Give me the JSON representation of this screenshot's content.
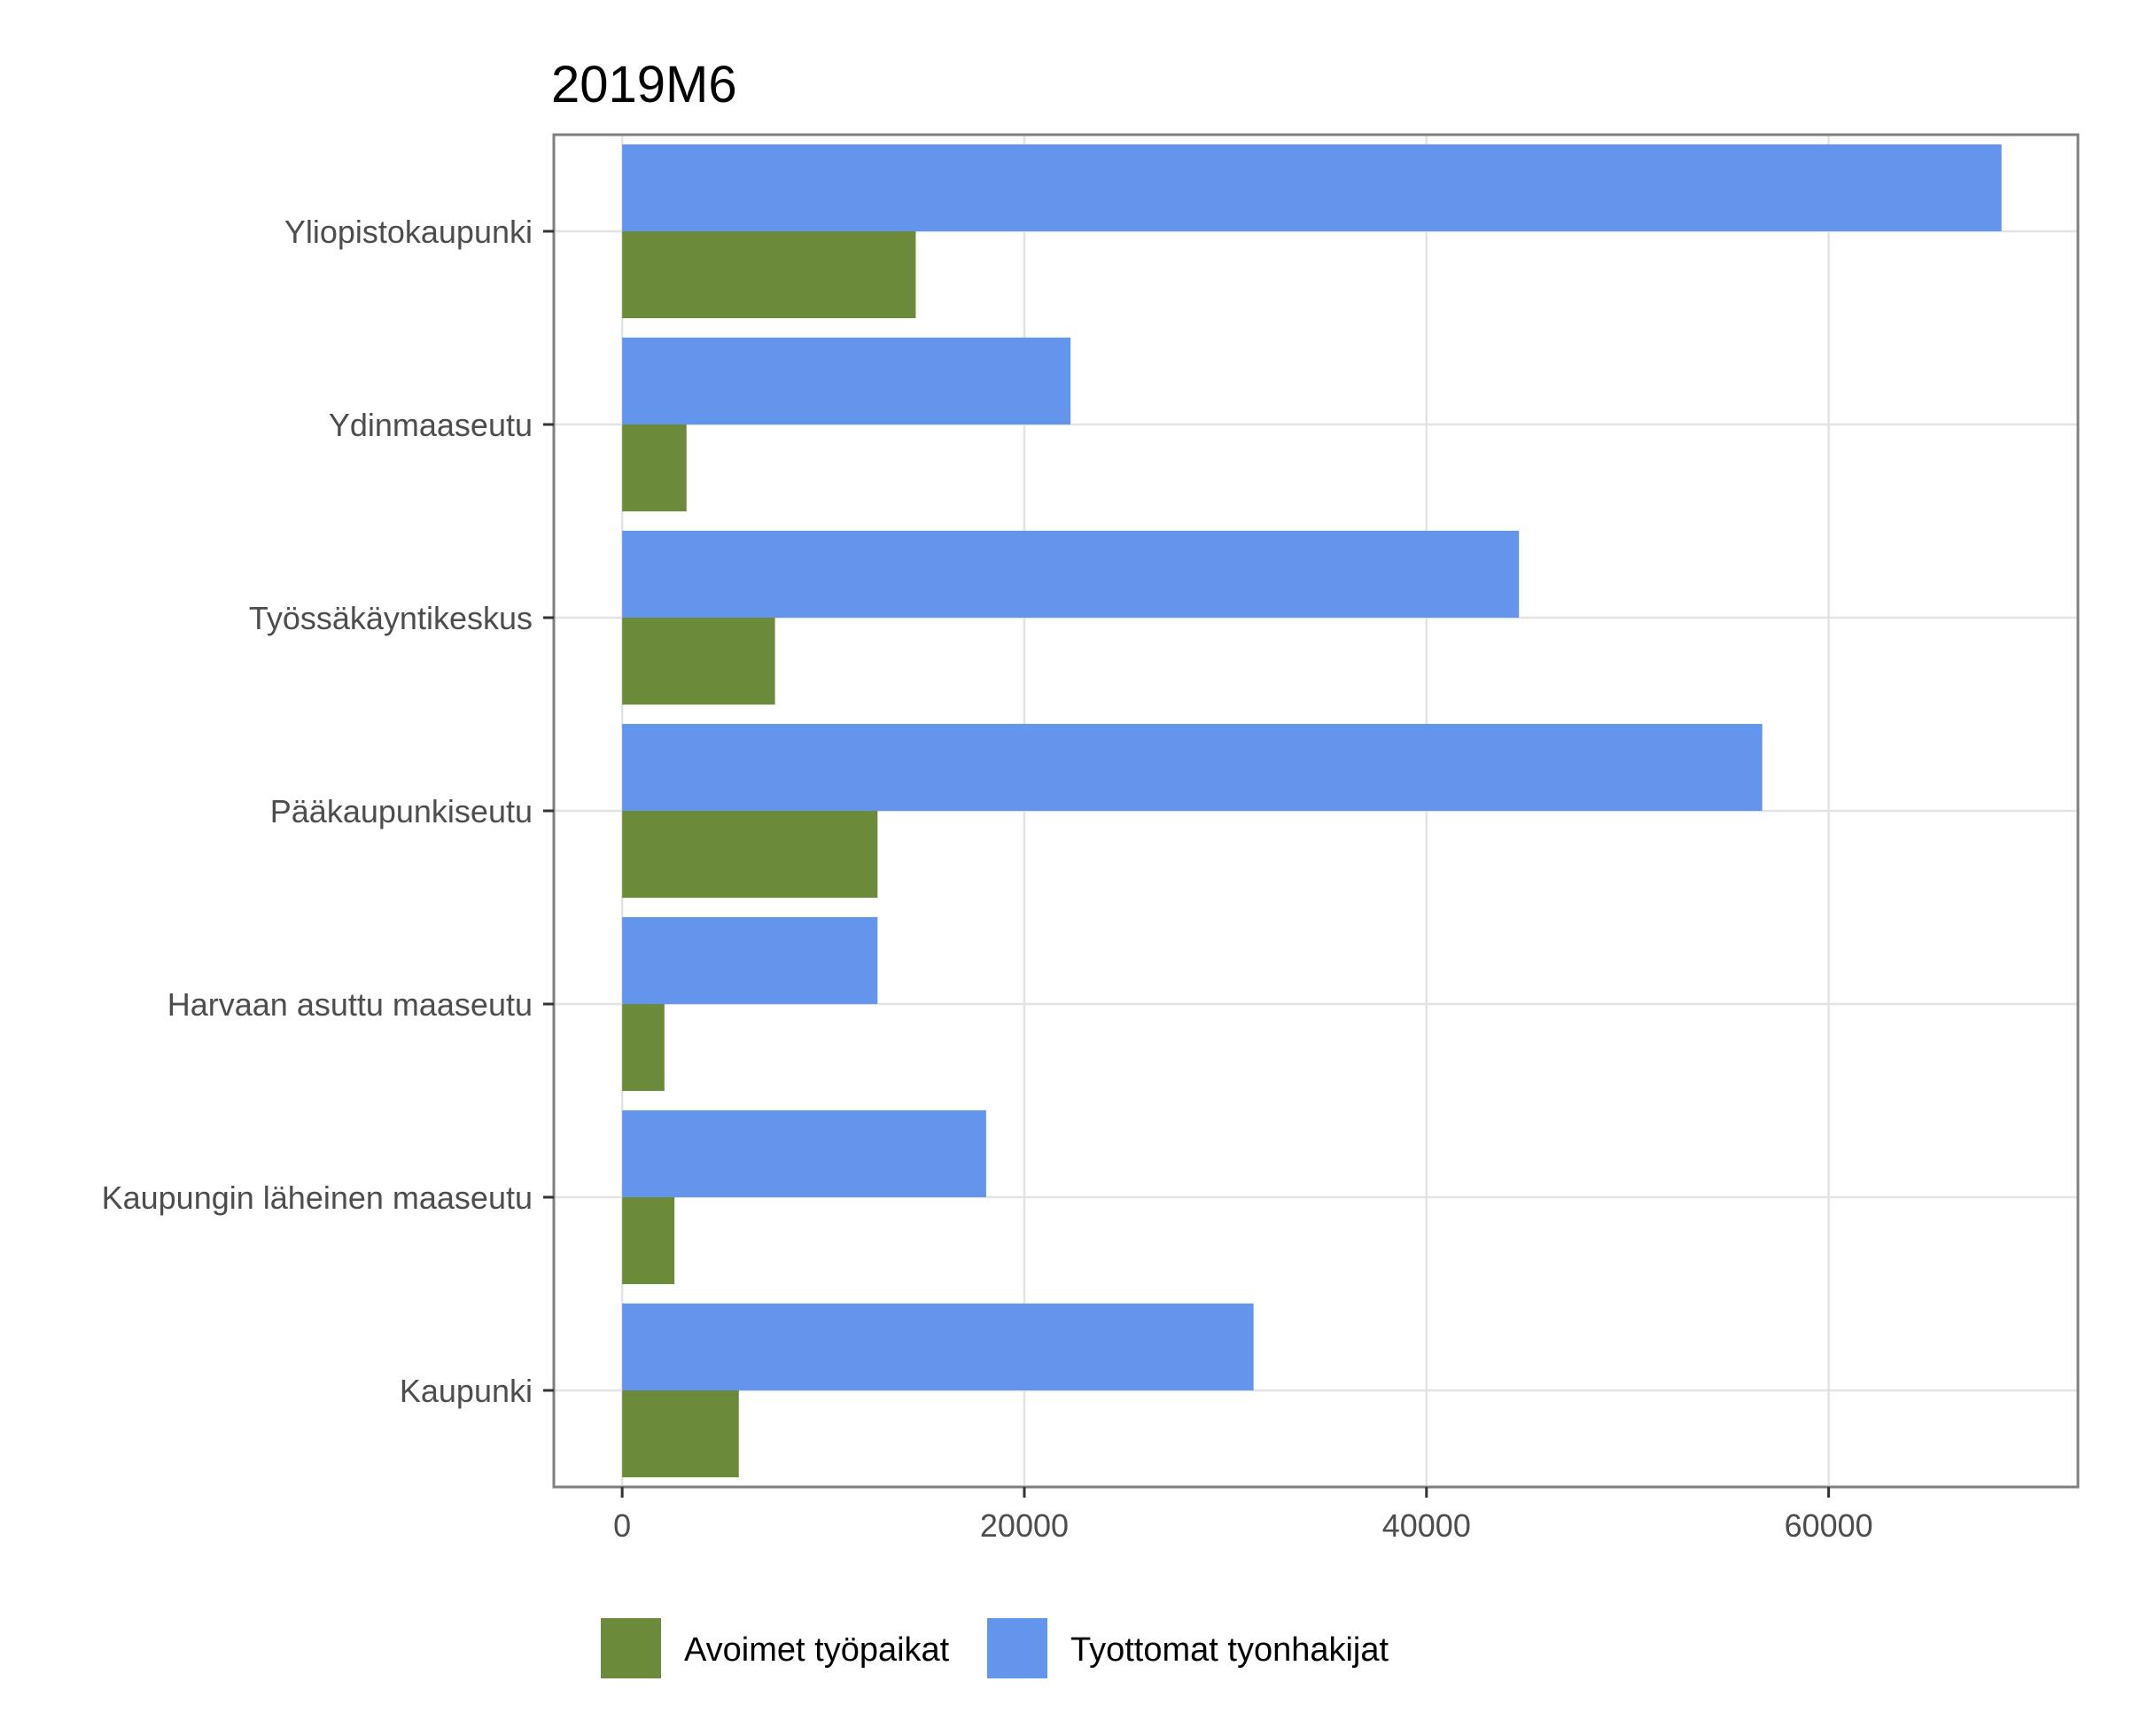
{
  "chart_data": {
    "type": "bar",
    "orientation": "horizontal",
    "title": "2019M6",
    "xlabel": "",
    "ylabel": "",
    "xlim": [
      -3400,
      72400
    ],
    "x_ticks": [
      0,
      20000,
      40000,
      60000
    ],
    "x_tick_labels": [
      "0",
      "20000",
      "40000",
      "60000"
    ],
    "grid": true,
    "legend_position": "bottom",
    "categories": [
      "Yliopistokaupunki",
      "Ydinmaaseutu",
      "Työssäkäyntikeskus",
      "Pääkaupunkiseutu",
      "Harvaan asuttu maaseutu",
      "Kaupungin läheinen maaseutu",
      "Kaupunki"
    ],
    "series": [
      {
        "name": "Avoimet työpaikat",
        "color": "#6b8a3a",
        "values": [
          14600,
          3200,
          7600,
          12700,
          2100,
          2600,
          5800
        ]
      },
      {
        "name": "Tyottomat tyonhakijat",
        "color": "#6495ed",
        "values": [
          68600,
          22300,
          44600,
          56700,
          12700,
          18100,
          31400
        ]
      }
    ]
  }
}
